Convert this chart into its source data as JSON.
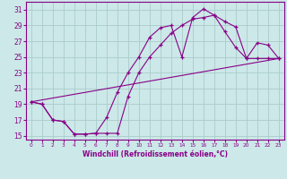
{
  "xlabel": "Windchill (Refroidissement éolien,°C)",
  "bg_color": "#cce8e8",
  "grid_color": "#aacccc",
  "line_color": "#880088",
  "xlim": [
    -0.5,
    23.5
  ],
  "ylim": [
    14.5,
    32.0
  ],
  "xticks": [
    0,
    1,
    2,
    3,
    4,
    5,
    6,
    7,
    8,
    9,
    10,
    11,
    12,
    13,
    14,
    15,
    16,
    17,
    18,
    19,
    20,
    21,
    22,
    23
  ],
  "yticks": [
    15,
    17,
    19,
    21,
    23,
    25,
    27,
    29,
    31
  ],
  "curve1_x": [
    0,
    1,
    2,
    3,
    4,
    5,
    6,
    7,
    8,
    9,
    10,
    11,
    12,
    13,
    14,
    15,
    16,
    17,
    18,
    19,
    20,
    21,
    22,
    23
  ],
  "curve1_y": [
    19.3,
    19.0,
    17.0,
    16.8,
    15.2,
    15.2,
    15.3,
    17.3,
    20.5,
    23.0,
    25.0,
    27.5,
    28.7,
    29.0,
    25.0,
    30.0,
    31.1,
    30.3,
    29.5,
    28.8,
    24.8,
    24.8,
    24.8,
    24.8
  ],
  "curve2_x": [
    0,
    1,
    2,
    3,
    4,
    5,
    6,
    7,
    8,
    9,
    10,
    11,
    12,
    13,
    14,
    15,
    16,
    17,
    18,
    19,
    20,
    21,
    22,
    23
  ],
  "curve2_y": [
    19.3,
    19.0,
    17.0,
    16.8,
    15.2,
    15.2,
    15.3,
    15.3,
    15.3,
    20.0,
    23.0,
    25.0,
    26.5,
    28.0,
    29.0,
    29.8,
    30.0,
    30.3,
    28.2,
    26.2,
    24.8,
    26.8,
    26.5,
    24.8
  ],
  "curve3_x": [
    0,
    23
  ],
  "curve3_y": [
    19.3,
    24.8
  ]
}
